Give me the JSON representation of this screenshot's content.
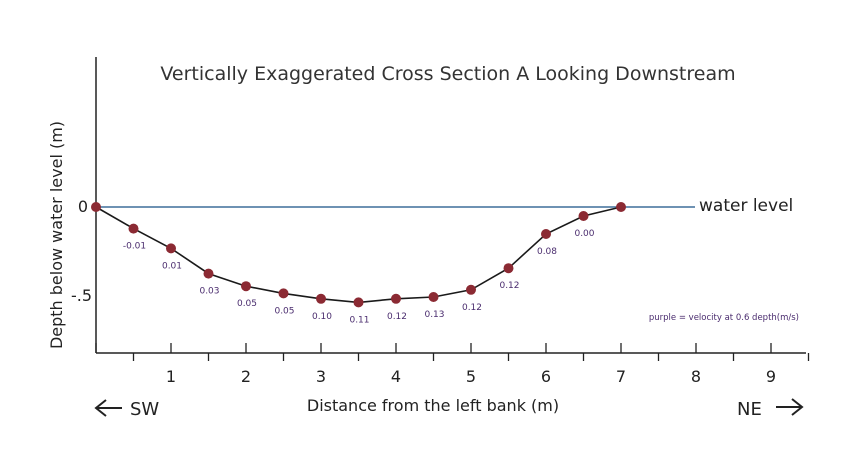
{
  "chart_data": {
    "type": "line",
    "title": "Vertically Exaggerated Cross Section A Looking Downstream",
    "xlabel": "Distance from the left bank (m)",
    "ylabel": "Depth below water level (m)",
    "xlim": [
      0,
      9.5
    ],
    "ylim": [
      -0.85,
      0
    ],
    "x_ticks": [
      "1",
      "2",
      "3",
      "4",
      "5",
      "6",
      "7",
      "8",
      "9"
    ],
    "y_ticks": [
      "0",
      "-.5"
    ],
    "water_level_label": "water level",
    "note": "purple = velocity at 0.6 depth(m/s)",
    "direction_left": "SW",
    "direction_right": "NE",
    "x": [
      0,
      0.5,
      1,
      1.5,
      2,
      2.5,
      3,
      3.5,
      4,
      4.5,
      5,
      5.5,
      6,
      6.5,
      7
    ],
    "y": [
      0,
      -0.12,
      -0.23,
      -0.37,
      -0.44,
      -0.48,
      -0.51,
      -0.53,
      -0.51,
      -0.5,
      -0.46,
      -0.34,
      -0.15,
      -0.05,
      0
    ],
    "velocities": [
      "",
      "-0.01",
      "0.01",
      "0.03",
      "0.05",
      "0.05",
      "0.10",
      "0.11",
      "0.12",
      "0.13",
      "0.12",
      "0.12",
      "0.08",
      "0.00",
      ""
    ],
    "colors": {
      "point": "#8b2a33",
      "profile": "#1a1a1a",
      "water": "#5a82a8",
      "velocity": "#4a2c6e"
    }
  }
}
